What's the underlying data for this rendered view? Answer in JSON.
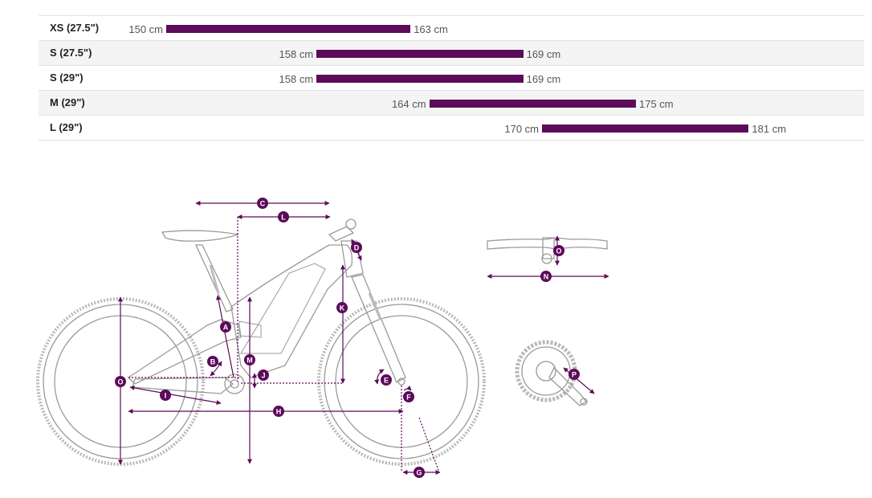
{
  "size_rows": [
    {
      "size": "XS (27.5\")",
      "min": "150 cm",
      "max": "163 cm",
      "min_cm": 150,
      "max_cm": 163
    },
    {
      "size": "S (27.5\")",
      "min": "158 cm",
      "max": "169 cm",
      "min_cm": 158,
      "max_cm": 169
    },
    {
      "size": "S (29\")",
      "min": "158 cm",
      "max": "169 cm",
      "min_cm": 158,
      "max_cm": 169
    },
    {
      "size": "M (29\")",
      "min": "164 cm",
      "max": "175 cm",
      "min_cm": 164,
      "max_cm": 175
    },
    {
      "size": "L (29\")",
      "min": "170 cm",
      "max": "181 cm",
      "min_cm": 170,
      "max_cm": 181
    }
  ],
  "geometry_labels": [
    "A",
    "B",
    "C",
    "D",
    "E",
    "F",
    "G",
    "H",
    "I",
    "J",
    "K",
    "L",
    "M",
    "N",
    "O",
    "P",
    "O"
  ],
  "colors": {
    "accent": "#5c0a5a",
    "line": "#9a9a9a"
  }
}
